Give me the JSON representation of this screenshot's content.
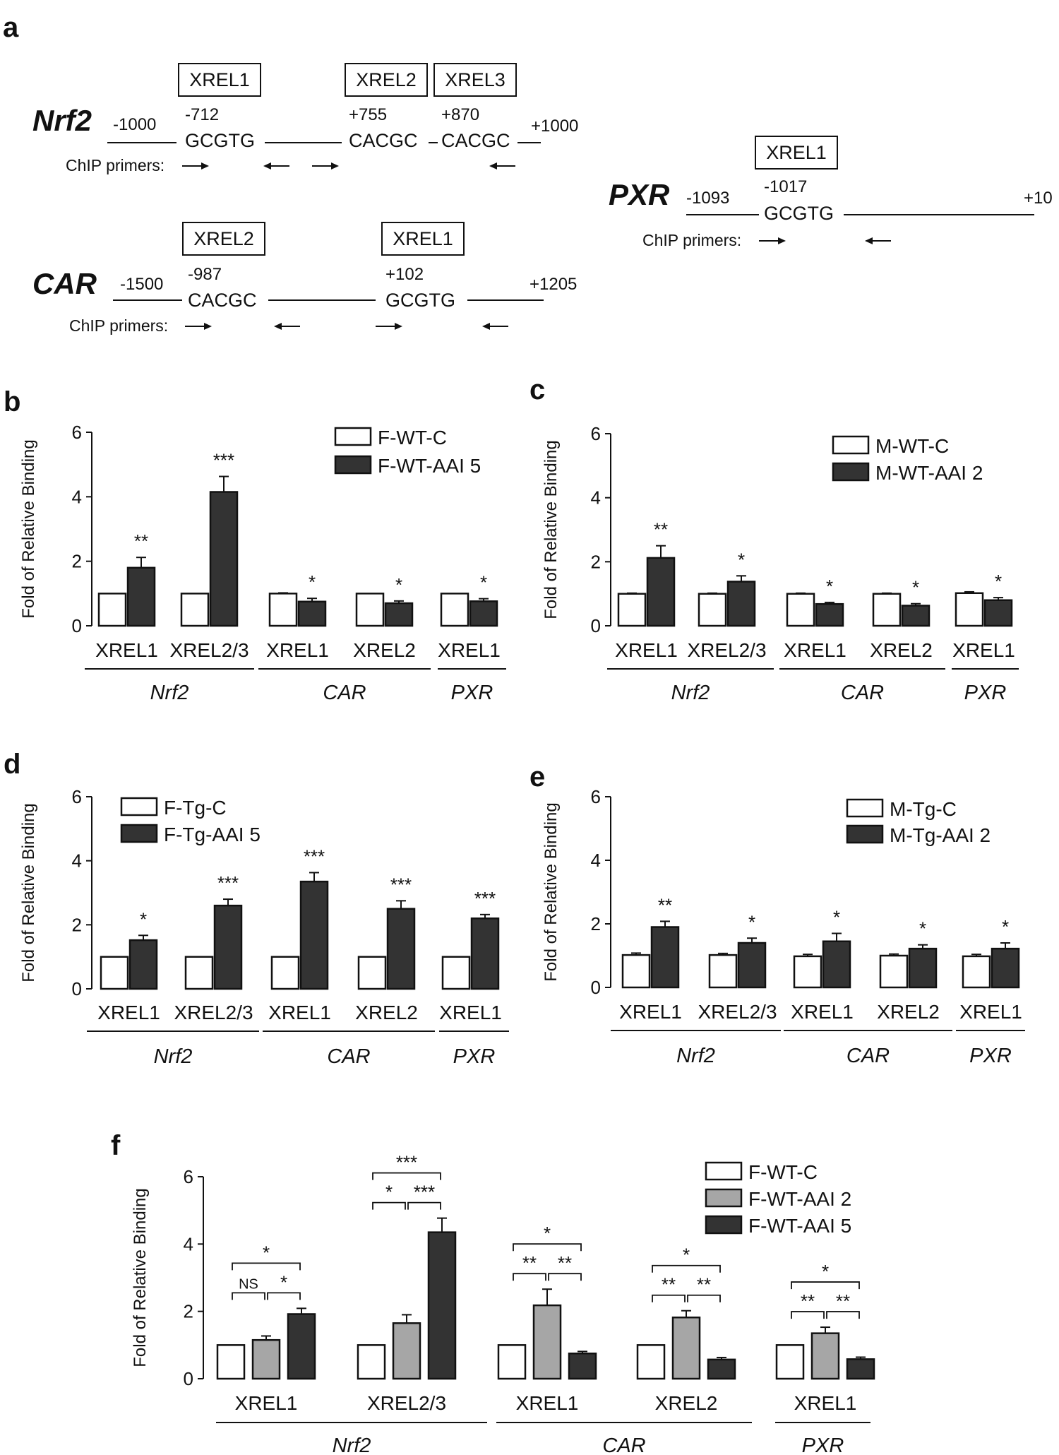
{
  "schematic": {
    "panel": "a",
    "primer_label": "ChIP primers:",
    "nrf2": {
      "gene": "Nrf2",
      "start": "-1000",
      "end": "+1000",
      "elements": [
        {
          "box": "XREL1",
          "pos": "-712",
          "seq": "GCGTG"
        },
        {
          "box": "XREL2",
          "pos": "+755",
          "seq": "CACGC"
        },
        {
          "box": "XREL3",
          "pos": "+870",
          "seq": "CACGC"
        }
      ]
    },
    "car": {
      "gene": "CAR",
      "start": "-1500",
      "end": "+1205",
      "elements": [
        {
          "box": "XREL2",
          "pos": "-987",
          "seq": "CACGC"
        },
        {
          "box": "XREL1",
          "pos": "+102",
          "seq": "GCGTG"
        }
      ]
    },
    "pxr": {
      "gene": "PXR",
      "start": "-1093",
      "end": "+10",
      "elements": [
        {
          "box": "XREL1",
          "pos": "-1017",
          "seq": "GCGTG"
        }
      ]
    }
  },
  "chart_data": [
    {
      "panel": "b",
      "type": "bar",
      "ylabel": "Fold of Relative Binding",
      "ylim": [
        0,
        6
      ],
      "yticks": [
        "0",
        "2",
        "4",
        "6"
      ],
      "categories": [
        "XREL1",
        "XREL2/3",
        "XREL1",
        "XREL2",
        "XREL1"
      ],
      "genes": [
        {
          "name": "Nrf2",
          "span": [
            0,
            1
          ]
        },
        {
          "name": "CAR",
          "span": [
            2,
            3
          ]
        },
        {
          "name": "PXR",
          "span": [
            4,
            4
          ]
        }
      ],
      "series": [
        {
          "name": "F-WT-C",
          "color": "#ffffff",
          "values": [
            1.0,
            1.0,
            1.0,
            1.0,
            1.0
          ],
          "errors": [
            0,
            0,
            0.02,
            0,
            0
          ]
        },
        {
          "name": "F-WT-AAI 5",
          "color": "#333333",
          "values": [
            1.8,
            4.15,
            0.75,
            0.7,
            0.76
          ],
          "errors": [
            0.32,
            0.48,
            0.1,
            0.07,
            0.08
          ]
        }
      ],
      "significance": [
        "**",
        "***",
        "*",
        "*",
        "*"
      ]
    },
    {
      "panel": "c",
      "type": "bar",
      "ylabel": "Fold of Relative Binding",
      "ylim": [
        0,
        6
      ],
      "yticks": [
        "0",
        "2",
        "4",
        "6"
      ],
      "categories": [
        "XREL1",
        "XREL2/3",
        "XREL1",
        "XREL2",
        "XREL1"
      ],
      "genes": [
        {
          "name": "Nrf2",
          "span": [
            0,
            1
          ]
        },
        {
          "name": "CAR",
          "span": [
            2,
            3
          ]
        },
        {
          "name": "PXR",
          "span": [
            4,
            4
          ]
        }
      ],
      "series": [
        {
          "name": "M-WT-C",
          "color": "#ffffff",
          "values": [
            1.0,
            1.0,
            1.0,
            1.0,
            1.02
          ],
          "errors": [
            0.02,
            0.02,
            0.02,
            0.02,
            0.04
          ]
        },
        {
          "name": "M-WT-AAI 2",
          "color": "#333333",
          "values": [
            2.12,
            1.38,
            0.68,
            0.63,
            0.8
          ],
          "errors": [
            0.38,
            0.18,
            0.05,
            0.06,
            0.08
          ]
        }
      ],
      "significance": [
        "**",
        "*",
        "*",
        "*",
        "*"
      ]
    },
    {
      "panel": "d",
      "type": "bar",
      "ylabel": "Fold of Relative Binding",
      "ylim": [
        0,
        6
      ],
      "yticks": [
        "0",
        "2",
        "4",
        "6"
      ],
      "categories": [
        "XREL1",
        "XREL2/3",
        "XREL1",
        "XREL2",
        "XREL1"
      ],
      "genes": [
        {
          "name": "Nrf2",
          "span": [
            0,
            1
          ]
        },
        {
          "name": "CAR",
          "span": [
            2,
            3
          ]
        },
        {
          "name": "PXR",
          "span": [
            4,
            4
          ]
        }
      ],
      "series": [
        {
          "name": "F-Tg-C",
          "color": "#ffffff",
          "values": [
            1.0,
            1.0,
            1.0,
            1.0,
            1.0
          ],
          "errors": [
            0,
            0,
            0,
            0,
            0
          ]
        },
        {
          "name": "F-Tg-AAI 5",
          "color": "#333333",
          "values": [
            1.52,
            2.6,
            3.35,
            2.5,
            2.2
          ],
          "errors": [
            0.15,
            0.2,
            0.28,
            0.25,
            0.12
          ]
        }
      ],
      "significance": [
        "*",
        "***",
        "***",
        "***",
        "***"
      ]
    },
    {
      "panel": "e",
      "type": "bar",
      "ylabel": "Fold of Relative Binding",
      "ylim": [
        0,
        6
      ],
      "yticks": [
        "0",
        "2",
        "4",
        "6"
      ],
      "categories": [
        "XREL1",
        "XREL2/3",
        "XREL1",
        "XREL2",
        "XREL1"
      ],
      "genes": [
        {
          "name": "Nrf2",
          "span": [
            0,
            1
          ]
        },
        {
          "name": "CAR",
          "span": [
            2,
            3
          ]
        },
        {
          "name": "PXR",
          "span": [
            4,
            4
          ]
        }
      ],
      "series": [
        {
          "name": "M-Tg-C",
          "color": "#ffffff",
          "values": [
            1.02,
            1.02,
            0.98,
            1.0,
            0.98
          ],
          "errors": [
            0.06,
            0.05,
            0.06,
            0.05,
            0.06
          ]
        },
        {
          "name": "M-Tg-AAI 2",
          "color": "#333333",
          "values": [
            1.9,
            1.4,
            1.45,
            1.22,
            1.22
          ],
          "errors": [
            0.18,
            0.15,
            0.25,
            0.12,
            0.18
          ]
        }
      ],
      "significance": [
        "**",
        "*",
        "*",
        "*",
        "*"
      ]
    },
    {
      "panel": "f",
      "type": "bar",
      "ylabel": "Fold of Relative Binding",
      "ylim": [
        0,
        6
      ],
      "yticks": [
        "0",
        "2",
        "4",
        "6"
      ],
      "categories": [
        "XREL1",
        "XREL2/3",
        "XREL1",
        "XREL2",
        "XREL1"
      ],
      "genes": [
        {
          "name": "Nrf2",
          "span": [
            0,
            1
          ]
        },
        {
          "name": "CAR",
          "span": [
            2,
            3
          ]
        },
        {
          "name": "PXR",
          "span": [
            4,
            4
          ]
        }
      ],
      "series": [
        {
          "name": "F-WT-C",
          "color": "#ffffff",
          "values": [
            1.0,
            1.0,
            1.0,
            1.0,
            1.0
          ],
          "errors": [
            0,
            0,
            0,
            0,
            0
          ]
        },
        {
          "name": "F-WT-AAI 2",
          "color": "#a6a6a6",
          "values": [
            1.15,
            1.65,
            2.18,
            1.82,
            1.35
          ],
          "errors": [
            0.12,
            0.25,
            0.48,
            0.2,
            0.18
          ]
        },
        {
          "name": "F-WT-AAI 5",
          "color": "#333333",
          "values": [
            1.92,
            4.35,
            0.75,
            0.57,
            0.58
          ],
          "errors": [
            0.17,
            0.42,
            0.06,
            0.06,
            0.06
          ]
        }
      ],
      "brackets": [
        {
          "cat": 0,
          "pair1": "NS",
          "pair2": "*",
          "outer": "*"
        },
        {
          "cat": 1,
          "pair1": "*",
          "pair2": "***",
          "outer": "***"
        },
        {
          "cat": 2,
          "pair1": "**",
          "pair2": "**",
          "outer": "*"
        },
        {
          "cat": 3,
          "pair1": "**",
          "pair2": "**",
          "outer": "*"
        },
        {
          "cat": 4,
          "pair1": "**",
          "pair2": "**",
          "outer": "*"
        }
      ]
    }
  ]
}
